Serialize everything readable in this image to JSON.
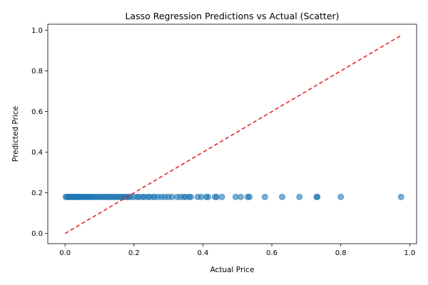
{
  "chart_data": {
    "type": "scatter",
    "title": "Lasso Regression Predictions vs Actual (Scatter)",
    "xlabel": "Actual Price",
    "ylabel": "Predicted Price",
    "xlim": [
      -0.05,
      1.02
    ],
    "ylim": [
      -0.05,
      1.03
    ],
    "xticks": [
      "0.0",
      "0.2",
      "0.4",
      "0.6",
      "0.8",
      "1.0"
    ],
    "yticks": [
      "0.0",
      "0.2",
      "0.4",
      "0.6",
      "0.8",
      "1.0"
    ],
    "grid": false,
    "legend": "none",
    "point_color": "#1f77b4",
    "reference_line": {
      "style": "dashed",
      "color": "#e8191a",
      "x": [
        0.0,
        0.975
      ],
      "y": [
        0.0,
        0.975
      ]
    },
    "series": [
      {
        "x": [
          0.002,
          0.006,
          0.01,
          0.013,
          0.016,
          0.019,
          0.022,
          0.025,
          0.028,
          0.031,
          0.034,
          0.037,
          0.04,
          0.044,
          0.048,
          0.052,
          0.056,
          0.06,
          0.064,
          0.068,
          0.072,
          0.076,
          0.08,
          0.085,
          0.09,
          0.095,
          0.1,
          0.105,
          0.11,
          0.115,
          0.12,
          0.125,
          0.13,
          0.135,
          0.14,
          0.145,
          0.15,
          0.155,
          0.16,
          0.165,
          0.17,
          0.175,
          0.18,
          0.185,
          0.19,
          0.2,
          0.21,
          0.215,
          0.225,
          0.23,
          0.24,
          0.245,
          0.255,
          0.26,
          0.27,
          0.28,
          0.29,
          0.3,
          0.31,
          0.325,
          0.335,
          0.345,
          0.35,
          0.36,
          0.365,
          0.385,
          0.395,
          0.41,
          0.415,
          0.435,
          0.44,
          0.455,
          0.495,
          0.51,
          0.53,
          0.535,
          0.58,
          0.63,
          0.68,
          0.73,
          0.732,
          0.8,
          0.975
        ],
        "y": [
          0.18,
          0.18,
          0.18,
          0.18,
          0.18,
          0.18,
          0.18,
          0.18,
          0.18,
          0.18,
          0.18,
          0.18,
          0.18,
          0.18,
          0.18,
          0.18,
          0.18,
          0.18,
          0.18,
          0.18,
          0.18,
          0.18,
          0.18,
          0.18,
          0.18,
          0.18,
          0.18,
          0.18,
          0.18,
          0.18,
          0.18,
          0.18,
          0.18,
          0.18,
          0.18,
          0.18,
          0.18,
          0.18,
          0.18,
          0.18,
          0.18,
          0.18,
          0.18,
          0.18,
          0.18,
          0.18,
          0.18,
          0.18,
          0.18,
          0.18,
          0.18,
          0.18,
          0.18,
          0.18,
          0.18,
          0.18,
          0.18,
          0.18,
          0.18,
          0.18,
          0.18,
          0.18,
          0.18,
          0.18,
          0.18,
          0.18,
          0.18,
          0.18,
          0.18,
          0.18,
          0.18,
          0.18,
          0.18,
          0.18,
          0.18,
          0.18,
          0.18,
          0.18,
          0.18,
          0.18,
          0.18,
          0.18,
          0.18
        ]
      }
    ]
  }
}
